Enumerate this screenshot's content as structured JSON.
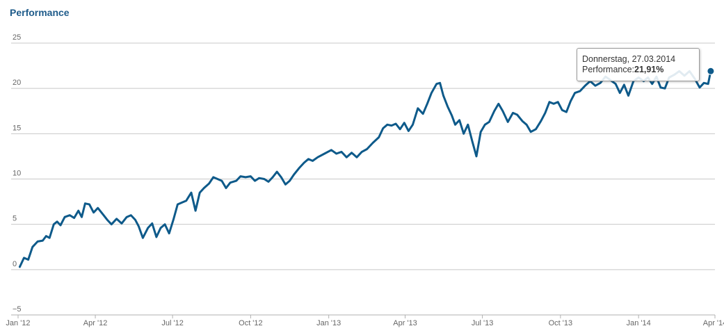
{
  "page": {
    "title": "Performance"
  },
  "tooltip": {
    "date": "Donnerstag, 27.03.2014",
    "label": "Performance:",
    "value": "21,91%"
  },
  "chart_data": {
    "type": "line",
    "title": "Performance",
    "xlabel": "",
    "ylabel": "",
    "ylim": [
      -5,
      25
    ],
    "yticks": [
      25,
      20,
      15,
      10,
      5,
      0,
      -5
    ],
    "ytick_labels": [
      "25",
      "20",
      "15",
      "10",
      "5",
      "0",
      "−5"
    ],
    "xlim": [
      "2012-01-01",
      "2014-04-01"
    ],
    "xticks": [
      {
        "date": "2012-01-01",
        "label": "Jan '12"
      },
      {
        "date": "2012-04-01",
        "label": "Apr '12"
      },
      {
        "date": "2012-07-01",
        "label": "Jul '12"
      },
      {
        "date": "2012-10-01",
        "label": "Oct '12"
      },
      {
        "date": "2013-01-01",
        "label": "Jan '13"
      },
      {
        "date": "2013-04-01",
        "label": "Apr '13"
      },
      {
        "date": "2013-07-01",
        "label": "Jul '13"
      },
      {
        "date": "2013-10-01",
        "label": "Oct '13"
      },
      {
        "date": "2014-01-01",
        "label": "Jan '14"
      },
      {
        "date": "2014-04-01",
        "label": "Apr '14"
      }
    ],
    "grid": true,
    "line_color": "#0e5a8a",
    "highlight": {
      "x": "2014-03-27",
      "y": 21.91
    },
    "series": [
      {
        "points": [
          [
            "2012-01-03",
            0.3
          ],
          [
            "2012-01-08",
            1.3
          ],
          [
            "2012-01-13",
            1.1
          ],
          [
            "2012-01-18",
            2.5
          ],
          [
            "2012-01-24",
            3.1
          ],
          [
            "2012-01-30",
            3.2
          ],
          [
            "2012-02-03",
            3.7
          ],
          [
            "2012-02-07",
            3.5
          ],
          [
            "2012-02-12",
            5.0
          ],
          [
            "2012-02-16",
            5.3
          ],
          [
            "2012-02-20",
            4.9
          ],
          [
            "2012-02-25",
            5.8
          ],
          [
            "2012-03-02",
            6.0
          ],
          [
            "2012-03-07",
            5.7
          ],
          [
            "2012-03-12",
            6.5
          ],
          [
            "2012-03-16",
            5.8
          ],
          [
            "2012-03-20",
            7.3
          ],
          [
            "2012-03-25",
            7.2
          ],
          [
            "2012-03-30",
            6.3
          ],
          [
            "2012-04-04",
            6.8
          ],
          [
            "2012-04-10",
            6.1
          ],
          [
            "2012-04-15",
            5.5
          ],
          [
            "2012-04-20",
            5.0
          ],
          [
            "2012-04-26",
            5.6
          ],
          [
            "2012-05-02",
            5.1
          ],
          [
            "2012-05-08",
            5.8
          ],
          [
            "2012-05-13",
            6.0
          ],
          [
            "2012-05-18",
            5.5
          ],
          [
            "2012-05-22",
            4.8
          ],
          [
            "2012-05-27",
            3.5
          ],
          [
            "2012-06-02",
            4.6
          ],
          [
            "2012-06-07",
            5.1
          ],
          [
            "2012-06-12",
            3.6
          ],
          [
            "2012-06-17",
            4.6
          ],
          [
            "2012-06-22",
            5.0
          ],
          [
            "2012-06-27",
            4.0
          ],
          [
            "2012-07-02",
            5.5
          ],
          [
            "2012-07-07",
            7.2
          ],
          [
            "2012-07-12",
            7.4
          ],
          [
            "2012-07-17",
            7.6
          ],
          [
            "2012-07-23",
            8.5
          ],
          [
            "2012-07-28",
            6.5
          ],
          [
            "2012-08-02",
            8.5
          ],
          [
            "2012-08-07",
            9.0
          ],
          [
            "2012-08-13",
            9.5
          ],
          [
            "2012-08-18",
            10.2
          ],
          [
            "2012-08-23",
            10.0
          ],
          [
            "2012-08-28",
            9.8
          ],
          [
            "2012-09-02",
            9.0
          ],
          [
            "2012-09-07",
            9.6
          ],
          [
            "2012-09-14",
            9.8
          ],
          [
            "2012-09-19",
            10.3
          ],
          [
            "2012-09-25",
            10.2
          ],
          [
            "2012-10-01",
            10.3
          ],
          [
            "2012-10-06",
            9.8
          ],
          [
            "2012-10-11",
            10.1
          ],
          [
            "2012-10-17",
            10.0
          ],
          [
            "2012-10-22",
            9.7
          ],
          [
            "2012-10-27",
            10.2
          ],
          [
            "2012-11-01",
            10.8
          ],
          [
            "2012-11-06",
            10.2
          ],
          [
            "2012-11-11",
            9.4
          ],
          [
            "2012-11-16",
            9.8
          ],
          [
            "2012-11-21",
            10.5
          ],
          [
            "2012-11-27",
            11.2
          ],
          [
            "2012-12-03",
            11.8
          ],
          [
            "2012-12-08",
            12.2
          ],
          [
            "2012-12-13",
            12.0
          ],
          [
            "2012-12-19",
            12.4
          ],
          [
            "2012-12-27",
            12.8
          ],
          [
            "2013-01-04",
            13.2
          ],
          [
            "2013-01-10",
            12.8
          ],
          [
            "2013-01-16",
            13.0
          ],
          [
            "2013-01-22",
            12.4
          ],
          [
            "2013-01-28",
            12.9
          ],
          [
            "2013-02-03",
            12.4
          ],
          [
            "2013-02-09",
            13.0
          ],
          [
            "2013-02-15",
            13.3
          ],
          [
            "2013-02-22",
            14.0
          ],
          [
            "2013-03-01",
            14.6
          ],
          [
            "2013-03-06",
            15.6
          ],
          [
            "2013-03-11",
            16.0
          ],
          [
            "2013-03-16",
            15.9
          ],
          [
            "2013-03-21",
            16.1
          ],
          [
            "2013-03-26",
            15.5
          ],
          [
            "2013-03-31",
            16.2
          ],
          [
            "2013-04-05",
            15.3
          ],
          [
            "2013-04-10",
            16.0
          ],
          [
            "2013-04-16",
            17.8
          ],
          [
            "2013-04-22",
            17.2
          ],
          [
            "2013-04-27",
            18.3
          ],
          [
            "2013-05-02",
            19.5
          ],
          [
            "2013-05-08",
            20.5
          ],
          [
            "2013-05-12",
            20.6
          ],
          [
            "2013-05-16",
            19.2
          ],
          [
            "2013-05-21",
            18.0
          ],
          [
            "2013-05-26",
            17.0
          ],
          [
            "2013-05-30",
            16.0
          ],
          [
            "2013-06-04",
            16.5
          ],
          [
            "2013-06-09",
            15.0
          ],
          [
            "2013-06-14",
            16.0
          ],
          [
            "2013-06-19",
            14.2
          ],
          [
            "2013-06-24",
            12.5
          ],
          [
            "2013-06-29",
            15.2
          ],
          [
            "2013-07-04",
            16.0
          ],
          [
            "2013-07-09",
            16.3
          ],
          [
            "2013-07-15",
            17.5
          ],
          [
            "2013-07-20",
            18.3
          ],
          [
            "2013-07-25",
            17.5
          ],
          [
            "2013-07-31",
            16.3
          ],
          [
            "2013-08-06",
            17.3
          ],
          [
            "2013-08-11",
            17.1
          ],
          [
            "2013-08-17",
            16.4
          ],
          [
            "2013-08-22",
            16.0
          ],
          [
            "2013-08-27",
            15.2
          ],
          [
            "2013-09-02",
            15.5
          ],
          [
            "2013-09-08",
            16.4
          ],
          [
            "2013-09-13",
            17.3
          ],
          [
            "2013-09-18",
            18.5
          ],
          [
            "2013-09-23",
            18.3
          ],
          [
            "2013-09-28",
            18.5
          ],
          [
            "2013-10-03",
            17.6
          ],
          [
            "2013-10-08",
            17.4
          ],
          [
            "2013-10-13",
            18.6
          ],
          [
            "2013-10-18",
            19.5
          ],
          [
            "2013-10-24",
            19.7
          ],
          [
            "2013-10-30",
            20.3
          ],
          [
            "2013-11-05",
            20.8
          ],
          [
            "2013-11-11",
            20.3
          ],
          [
            "2013-11-17",
            20.6
          ],
          [
            "2013-11-23",
            21.3
          ],
          [
            "2013-11-29",
            20.9
          ],
          [
            "2013-12-05",
            20.5
          ],
          [
            "2013-12-10",
            19.5
          ],
          [
            "2013-12-15",
            20.4
          ],
          [
            "2013-12-20",
            19.2
          ],
          [
            "2013-12-26",
            20.8
          ],
          [
            "2014-01-01",
            21.2
          ],
          [
            "2014-01-07",
            20.8
          ],
          [
            "2014-01-12",
            21.2
          ],
          [
            "2014-01-17",
            20.5
          ],
          [
            "2014-01-22",
            21.3
          ],
          [
            "2014-01-27",
            20.1
          ],
          [
            "2014-02-01",
            20.0
          ],
          [
            "2014-02-06",
            21.2
          ],
          [
            "2014-02-12",
            21.5
          ],
          [
            "2014-02-18",
            21.9
          ],
          [
            "2014-02-24",
            21.4
          ],
          [
            "2014-03-02",
            21.9
          ],
          [
            "2014-03-08",
            21.1
          ],
          [
            "2014-03-14",
            20.1
          ],
          [
            "2014-03-19",
            20.6
          ],
          [
            "2014-03-24",
            20.5
          ],
          [
            "2014-03-27",
            21.91
          ]
        ]
      }
    ]
  }
}
